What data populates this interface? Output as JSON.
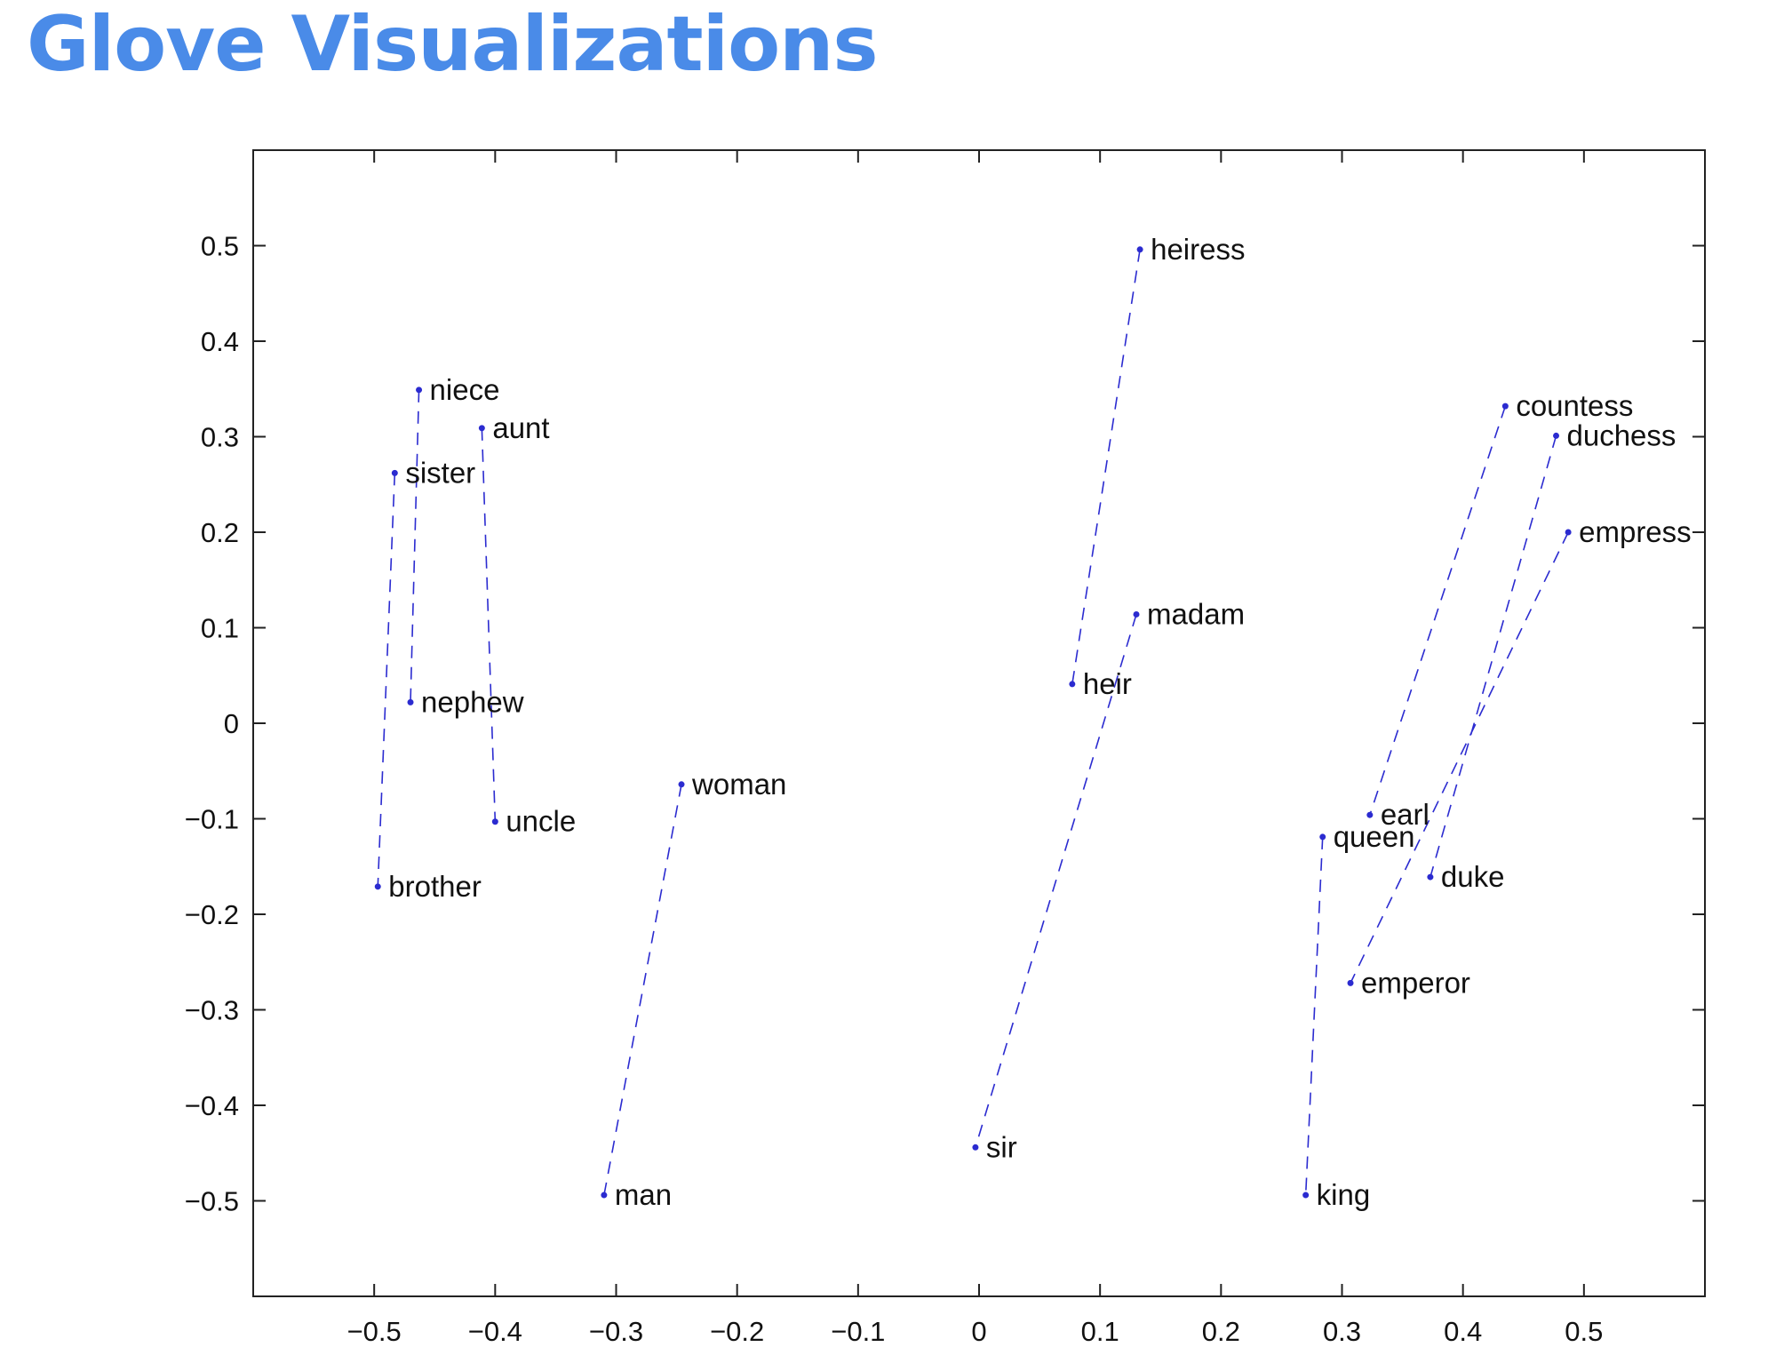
{
  "slide": {
    "title": "Glove Visualizations"
  },
  "colors": {
    "title": "#4a8be8",
    "series": "#2b2bd0",
    "axis": "#222222"
  },
  "chart_data": {
    "type": "scatter",
    "title": "",
    "xlabel": "",
    "ylabel": "",
    "xlim": [
      -0.6,
      0.6
    ],
    "ylim": [
      -0.6,
      0.6
    ],
    "xticks": [
      -0.5,
      -0.4,
      -0.3,
      -0.2,
      -0.1,
      0,
      0.1,
      0.2,
      0.3,
      0.4,
      0.5
    ],
    "yticks": [
      0.5,
      0.4,
      0.3,
      0.2,
      0.1,
      0,
      -0.1,
      -0.2,
      -0.3,
      -0.4,
      -0.5
    ],
    "xtick_labels": [
      "−0.5",
      "−0.4",
      "−0.3",
      "−0.2",
      "−0.1",
      "0",
      "0.1",
      "0.2",
      "0.3",
      "0.4",
      "0.5"
    ],
    "ytick_labels": [
      "0.5",
      "0.4",
      "0.3",
      "0.2",
      "0.1",
      "0",
      "−0.1",
      "−0.2",
      "−0.3",
      "−0.4",
      "−0.5"
    ],
    "grid": false,
    "points": [
      {
        "word": "niece",
        "x": -0.463,
        "y": 0.349
      },
      {
        "word": "aunt",
        "x": -0.411,
        "y": 0.309
      },
      {
        "word": "sister",
        "x": -0.483,
        "y": 0.262
      },
      {
        "word": "nephew",
        "x": -0.47,
        "y": 0.022
      },
      {
        "word": "uncle",
        "x": -0.4,
        "y": -0.103
      },
      {
        "word": "brother",
        "x": -0.497,
        "y": -0.171
      },
      {
        "word": "woman",
        "x": -0.246,
        "y": -0.064
      },
      {
        "word": "man",
        "x": -0.31,
        "y": -0.494
      },
      {
        "word": "heiress",
        "x": 0.133,
        "y": 0.496
      },
      {
        "word": "madam",
        "x": 0.13,
        "y": 0.114
      },
      {
        "word": "heir",
        "x": 0.077,
        "y": 0.041
      },
      {
        "word": "sir",
        "x": -0.003,
        "y": -0.444
      },
      {
        "word": "countess",
        "x": 0.435,
        "y": 0.332
      },
      {
        "word": "duchess",
        "x": 0.477,
        "y": 0.301
      },
      {
        "word": "empress",
        "x": 0.487,
        "y": 0.2
      },
      {
        "word": "earl",
        "x": 0.323,
        "y": -0.096
      },
      {
        "word": "queen",
        "x": 0.284,
        "y": -0.119
      },
      {
        "word": "duke",
        "x": 0.373,
        "y": -0.161
      },
      {
        "word": "emperor",
        "x": 0.307,
        "y": -0.272
      },
      {
        "word": "king",
        "x": 0.27,
        "y": -0.494
      }
    ],
    "pairs": [
      [
        "niece",
        "nephew"
      ],
      [
        "aunt",
        "uncle"
      ],
      [
        "sister",
        "brother"
      ],
      [
        "woman",
        "man"
      ],
      [
        "heiress",
        "heir"
      ],
      [
        "madam",
        "sir"
      ],
      [
        "countess",
        "earl"
      ],
      [
        "duchess",
        "duke"
      ],
      [
        "empress",
        "emperor"
      ],
      [
        "queen",
        "king"
      ]
    ]
  }
}
